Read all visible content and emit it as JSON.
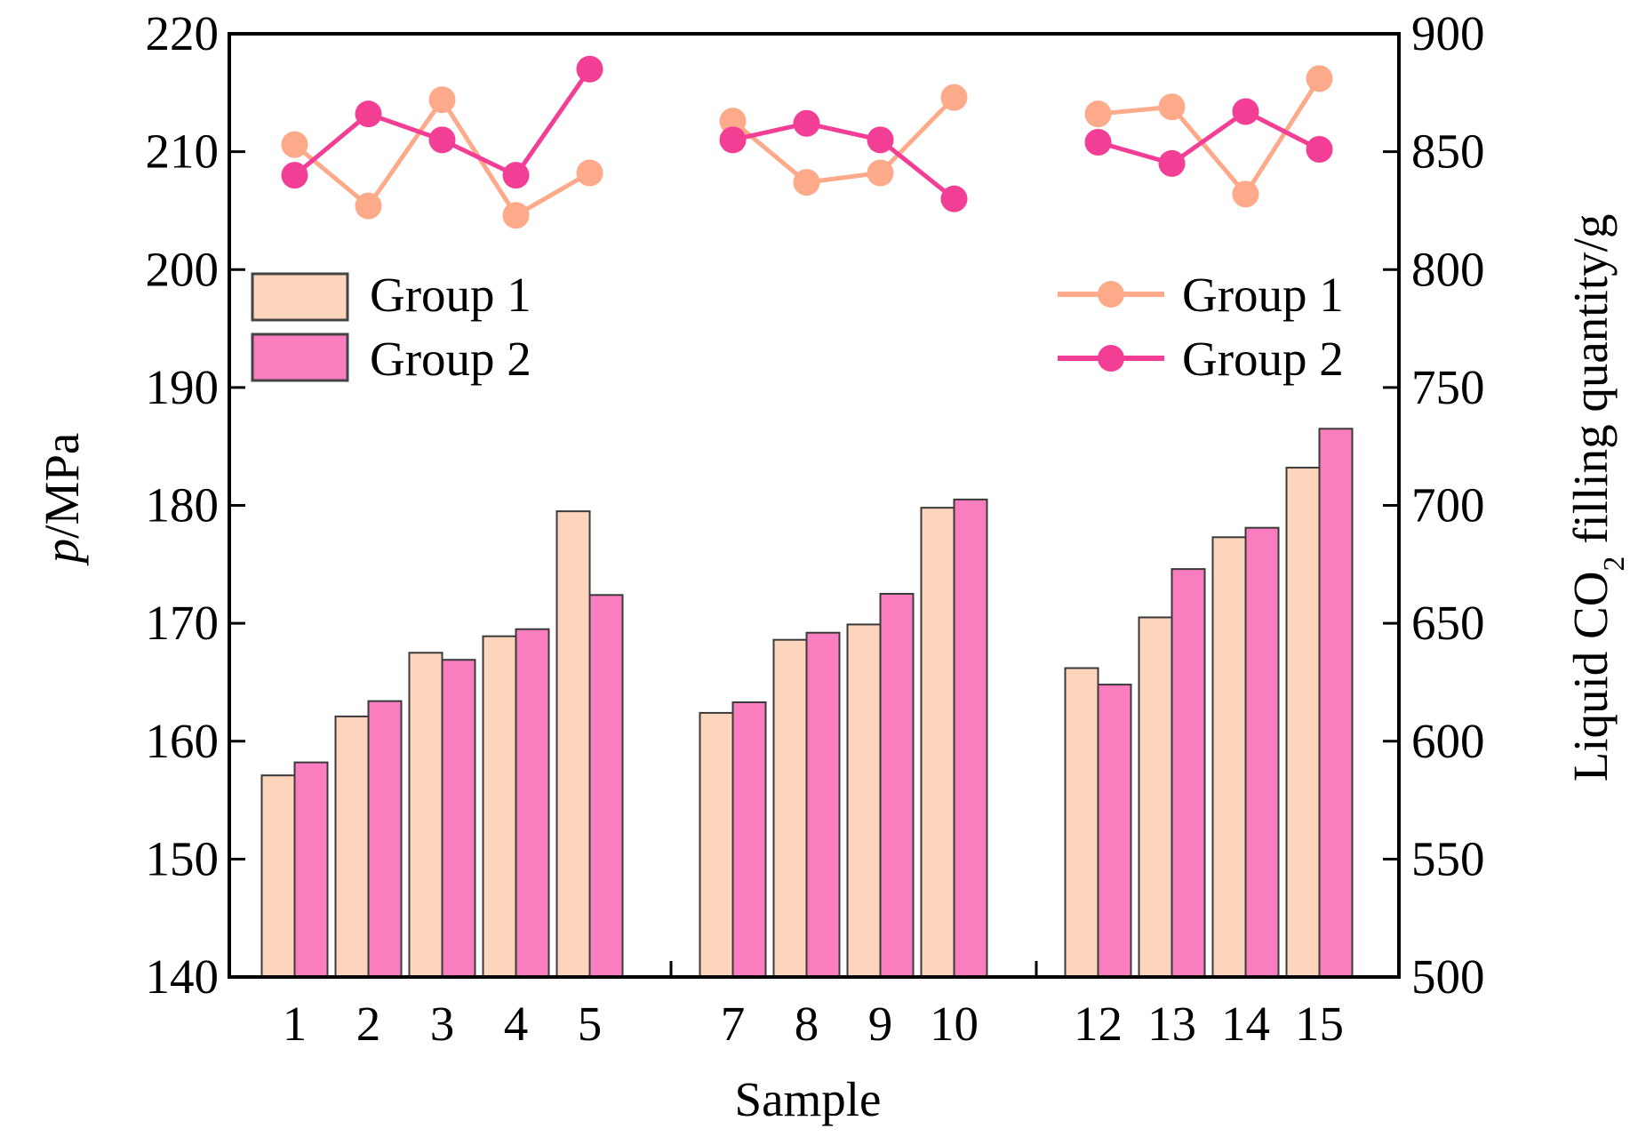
{
  "chart_data": {
    "type": "bar",
    "categories": [
      "1",
      "2",
      "3",
      "4",
      "5",
      "7",
      "8",
      "9",
      "10",
      "12",
      "13",
      "14",
      "15"
    ],
    "groups": [
      [
        "1",
        "2",
        "3",
        "4",
        "5"
      ],
      [
        "7",
        "8",
        "9",
        "10"
      ],
      [
        "12",
        "13",
        "14",
        "15"
      ]
    ],
    "xlabel": "Sample",
    "ylabel_left": {
      "italic": "p",
      "rest": "/MPa"
    },
    "ylabel_right": {
      "pre": "Liquid CO",
      "sub": "2",
      "post": " filling quantity/g"
    },
    "ylim_left": [
      140,
      220
    ],
    "yticks_left": [
      140,
      150,
      160,
      170,
      180,
      190,
      200,
      210,
      220
    ],
    "ylim_right": [
      500,
      900
    ],
    "yticks_right": [
      500,
      550,
      600,
      650,
      700,
      750,
      800,
      850,
      900
    ],
    "bar_series": [
      {
        "name": "Group 1",
        "axis": "left",
        "color": "#fdd5bd",
        "values": [
          157.1,
          162.1,
          167.5,
          168.9,
          179.5,
          162.4,
          168.6,
          169.9,
          179.8,
          166.2,
          170.5,
          177.3,
          183.2
        ]
      },
      {
        "name": "Group 2",
        "axis": "left",
        "color": "#fa7dbf",
        "values": [
          158.2,
          163.4,
          166.9,
          169.5,
          172.4,
          163.3,
          169.2,
          172.5,
          180.5,
          164.8,
          174.6,
          178.1,
          186.5
        ]
      }
    ],
    "line_series": [
      {
        "name": "Group 1",
        "axis": "right",
        "color": "#fcaa8a",
        "values": [
          [
            853,
            827,
            872,
            823,
            841
          ],
          [
            863,
            837,
            841,
            873
          ],
          [
            866,
            869,
            832,
            881
          ]
        ]
      },
      {
        "name": "Group 2",
        "axis": "right",
        "color": "#f23e95",
        "values": [
          [
            840,
            866,
            855,
            840,
            885
          ],
          [
            855,
            862,
            855,
            830
          ],
          [
            854,
            845,
            867,
            851
          ]
        ]
      }
    ],
    "legend_bars": [
      "Group 1",
      "Group 2"
    ],
    "legend_lines": [
      "Group 1",
      "Group 2"
    ],
    "legend_bars_position": "upper-left",
    "legend_lines_position": "upper-right",
    "grid": false
  }
}
